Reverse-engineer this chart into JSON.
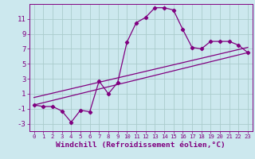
{
  "xlabel": "Windchill (Refroidissement éolien,°C)",
  "bg_color": "#cce8ee",
  "line_color": "#800080",
  "grid_color": "#aacccc",
  "xlim": [
    -0.5,
    23.5
  ],
  "ylim": [
    -4,
    13
  ],
  "xticks": [
    0,
    1,
    2,
    3,
    4,
    5,
    6,
    7,
    8,
    9,
    10,
    11,
    12,
    13,
    14,
    15,
    16,
    17,
    18,
    19,
    20,
    21,
    22,
    23
  ],
  "yticks": [
    -3,
    -1,
    1,
    3,
    5,
    7,
    9,
    11
  ],
  "curve1_x": [
    0,
    1,
    2,
    3,
    4,
    5,
    6,
    7,
    8,
    9,
    10,
    11,
    12,
    13,
    14,
    15,
    16,
    17,
    18,
    19,
    20,
    21,
    22,
    23
  ],
  "curve1_y": [
    -0.5,
    -0.7,
    -0.7,
    -1.3,
    -2.8,
    -1.2,
    -1.4,
    2.7,
    1.0,
    2.5,
    7.9,
    10.5,
    11.2,
    12.5,
    12.5,
    12.2,
    9.6,
    7.2,
    7.0,
    8.0,
    8.0,
    8.0,
    7.5,
    6.5
  ],
  "curve2_x": [
    0,
    23
  ],
  "curve2_y": [
    -0.5,
    6.5
  ],
  "curve3_x": [
    0,
    23
  ],
  "curve3_y": [
    0.5,
    7.2
  ]
}
